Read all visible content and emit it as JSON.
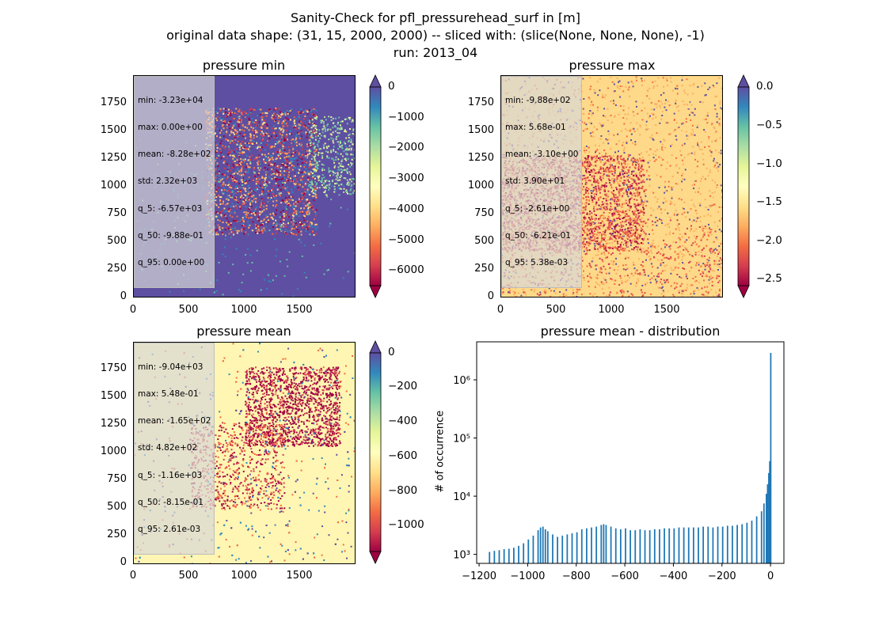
{
  "figure": {
    "title_line1": "Sanity-Check for pfl_pressurehead_surf in [m]",
    "title_line2": "original data shape: (31, 15, 2000, 2000) -- sliced with: (slice(None, None, None), -1)",
    "title_line3": "run: 2013_04"
  },
  "panels": [
    {
      "title": "pressure min",
      "stats": [
        "min: -3.23e+04",
        "max: 0.00e+00",
        "mean: -8.28e+02",
        "std: 2.32e+03",
        "q_5: -6.57e+03",
        "q_50: -9.88e-01",
        "q_95: 0.00e+00"
      ],
      "colorbar_ticks": [
        "0",
        "−1000",
        "−2000",
        "−3000",
        "−4000",
        "−5000",
        "−6000"
      ]
    },
    {
      "title": "pressure max",
      "stats": [
        "min: -9.88e+02",
        "max: 5.68e-01",
        "mean: -3.10e+00",
        "std: 3.90e+01",
        "q_5: -2.61e+00",
        "q_50: -6.21e-01",
        "q_95: 5.38e-03"
      ],
      "colorbar_ticks": [
        "0.0",
        "−0.5",
        "−1.0",
        "−1.5",
        "−2.0",
        "−2.5"
      ]
    },
    {
      "title": "pressure mean",
      "stats": [
        "min: -9.04e+03",
        "max: 5.48e-01",
        "mean: -1.65e+02",
        "std: 4.82e+02",
        "q_5: -1.16e+03",
        "q_50: -8.15e-01",
        "q_95: 2.61e-03"
      ],
      "colorbar_ticks": [
        "0",
        "−200",
        "−400",
        "−600",
        "−800",
        "−1000"
      ]
    }
  ],
  "map_axes": {
    "y_ticks": [
      "0",
      "250",
      "500",
      "750",
      "1000",
      "1250",
      "1500",
      "1750"
    ],
    "x_ticks": [
      "0",
      "500",
      "1000",
      "1500"
    ]
  },
  "colors": {
    "spectral": [
      "#9e0142",
      "#d53e4f",
      "#f46d43",
      "#fdae61",
      "#fee08b",
      "#ffffbf",
      "#e6f598",
      "#abdda4",
      "#66c2a5",
      "#3288bd",
      "#5e4fa2"
    ],
    "hist_bar": "#1f77b4"
  },
  "chart_data": {
    "type": "bar",
    "title": "pressure mean - distribution",
    "ylabel": "# of occurrence",
    "xlabel": "",
    "yscale": "log",
    "xlim": [
      -1210,
      55
    ],
    "ylim": [
      700,
      4500000
    ],
    "x_ticks": [
      -1200,
      -1000,
      -800,
      -600,
      -400,
      -200,
      0
    ],
    "x_tick_labels": [
      "−1200",
      "−1000",
      "−800",
      "−600",
      "−400",
      "−200",
      "0"
    ],
    "y_tick_labels": [
      "10³",
      "10⁴",
      "10⁵",
      "10⁶"
    ],
    "bin_width": 5.8,
    "bins": [
      [
        -1160,
        1100
      ],
      [
        -1140,
        1150
      ],
      [
        -1120,
        1180
      ],
      [
        -1100,
        1230
      ],
      [
        -1080,
        1250
      ],
      [
        -1060,
        1300
      ],
      [
        -1040,
        1400
      ],
      [
        -1020,
        1550
      ],
      [
        -1000,
        1800
      ],
      [
        -980,
        2100
      ],
      [
        -960,
        2600
      ],
      [
        -950,
        2900
      ],
      [
        -940,
        3000
      ],
      [
        -930,
        2700
      ],
      [
        -920,
        2500
      ],
      [
        -900,
        2200
      ],
      [
        -880,
        2000
      ],
      [
        -860,
        2100
      ],
      [
        -840,
        2200
      ],
      [
        -820,
        2300
      ],
      [
        -800,
        2400
      ],
      [
        -780,
        2700
      ],
      [
        -760,
        2800
      ],
      [
        -740,
        2900
      ],
      [
        -720,
        3000
      ],
      [
        -700,
        3200
      ],
      [
        -690,
        3300
      ],
      [
        -680,
        3200
      ],
      [
        -660,
        3000
      ],
      [
        -640,
        2800
      ],
      [
        -620,
        2700
      ],
      [
        -600,
        2800
      ],
      [
        -580,
        2600
      ],
      [
        -560,
        2600
      ],
      [
        -540,
        2700
      ],
      [
        -520,
        2600
      ],
      [
        -500,
        2600
      ],
      [
        -480,
        2700
      ],
      [
        -460,
        2700
      ],
      [
        -440,
        2800
      ],
      [
        -420,
        2800
      ],
      [
        -400,
        2800
      ],
      [
        -380,
        2900
      ],
      [
        -360,
        2900
      ],
      [
        -340,
        2900
      ],
      [
        -320,
        2900
      ],
      [
        -300,
        2900
      ],
      [
        -280,
        3000
      ],
      [
        -260,
        3000
      ],
      [
        -240,
        2900
      ],
      [
        -220,
        3000
      ],
      [
        -200,
        3000
      ],
      [
        -180,
        3100
      ],
      [
        -160,
        3100
      ],
      [
        -140,
        3200
      ],
      [
        -120,
        3300
      ],
      [
        -100,
        3500
      ],
      [
        -80,
        3800
      ],
      [
        -60,
        4500
      ],
      [
        -40,
        5500
      ],
      [
        -30,
        7500
      ],
      [
        -20,
        11000
      ],
      [
        -15,
        16000
      ],
      [
        -10,
        25000
      ],
      [
        -6,
        40000
      ],
      [
        -2,
        2900000
      ]
    ]
  }
}
